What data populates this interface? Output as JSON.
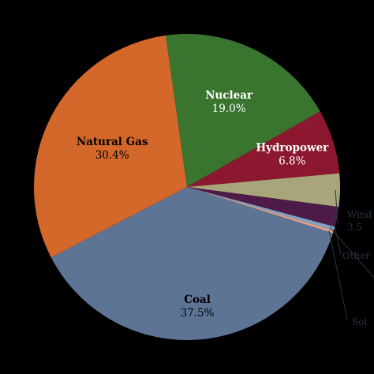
{
  "chart_data": {
    "type": "pie",
    "title": "",
    "slices": [
      {
        "name": "Nuclear",
        "value_text": "19.0%",
        "value": 19.0,
        "color": "#3a7530",
        "text_color": "#ffffff"
      },
      {
        "name": "Hydropower",
        "value_text": "6.8%",
        "value": 6.8,
        "color": "#8c1830",
        "text_color": "#ffffff"
      },
      {
        "name": "Wind",
        "value_text": "",
        "value": 3.5,
        "color": "#a9a57a",
        "text_color": "#2a3140"
      },
      {
        "name": "Other",
        "value_text": "",
        "value": 2.1,
        "color": "#4e1a48",
        "text_color": "#2a3140"
      },
      {
        "name": "",
        "value_text": "",
        "value": 0.4,
        "color": "#7fa3c6",
        "text_color": "#2a3140"
      },
      {
        "name": "",
        "value_text": "",
        "value": 0.3,
        "color": "#e09e8a",
        "text_color": "#2a3140"
      },
      {
        "name": "Coal",
        "value_text": "37.5%",
        "value": 37.5,
        "color": "#5e7494",
        "text_color": "#000000"
      },
      {
        "name": "Natural Gas",
        "value_text": "30.4%",
        "value": 30.4,
        "color": "#d4672a",
        "text_color": "#000000"
      }
    ],
    "outside_labels": [
      {
        "text": "Wind"
      },
      {
        "text": "3.5"
      },
      {
        "text": "Other"
      },
      {
        "text": "Sol"
      }
    ],
    "start_angle_deg": -8,
    "direction": "clockwise",
    "legend": "none"
  }
}
